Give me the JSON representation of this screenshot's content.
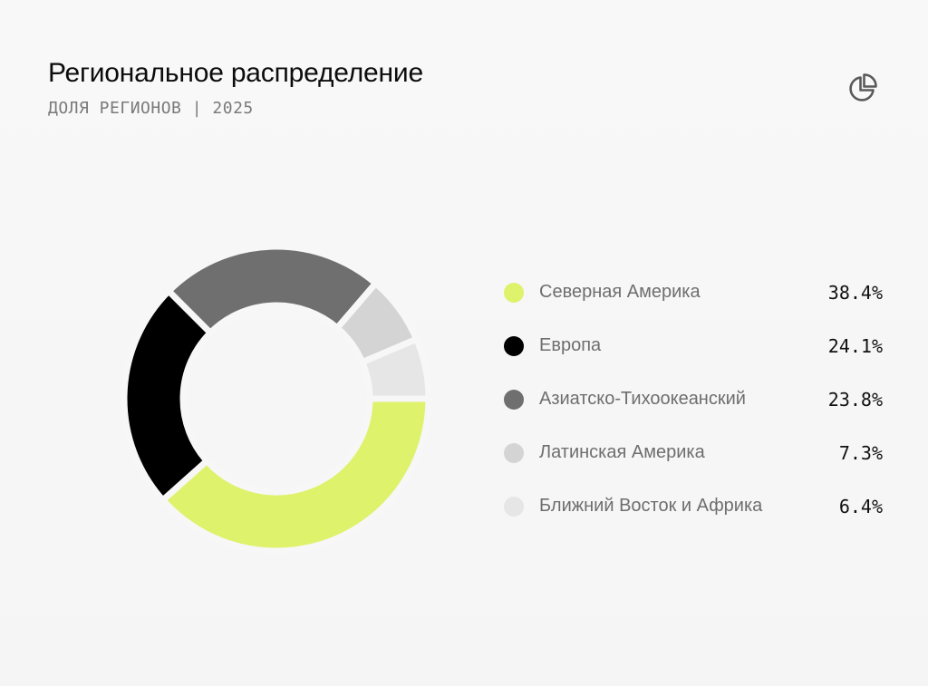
{
  "header": {
    "title": "Региональное распределение",
    "subtitle": "ДОЛЯ РЕГИОНОВ | 2025"
  },
  "icons": {
    "chart_type": "pie-chart-icon"
  },
  "colors": {
    "accent": "#dff26b",
    "series": [
      "#dff26b",
      "#000000",
      "#6f6f6f",
      "#d4d4d4",
      "#e6e6e6"
    ]
  },
  "chart_data": {
    "type": "pie",
    "donut": true,
    "title": "Региональное распределение",
    "subtitle": "ДОЛЯ РЕГИОНОВ | 2025",
    "legend_position": "right",
    "categories": [
      "Северная Америка",
      "Европа",
      "Азиатско-Тихоокеанский",
      "Латинская Америка",
      "Ближний Восток и Африка"
    ],
    "values": [
      38.4,
      24.1,
      23.8,
      7.3,
      6.4
    ],
    "value_labels": [
      "38.4%",
      "24.1%",
      "23.8%",
      "7.3%",
      "6.4%"
    ],
    "unit": "%"
  }
}
